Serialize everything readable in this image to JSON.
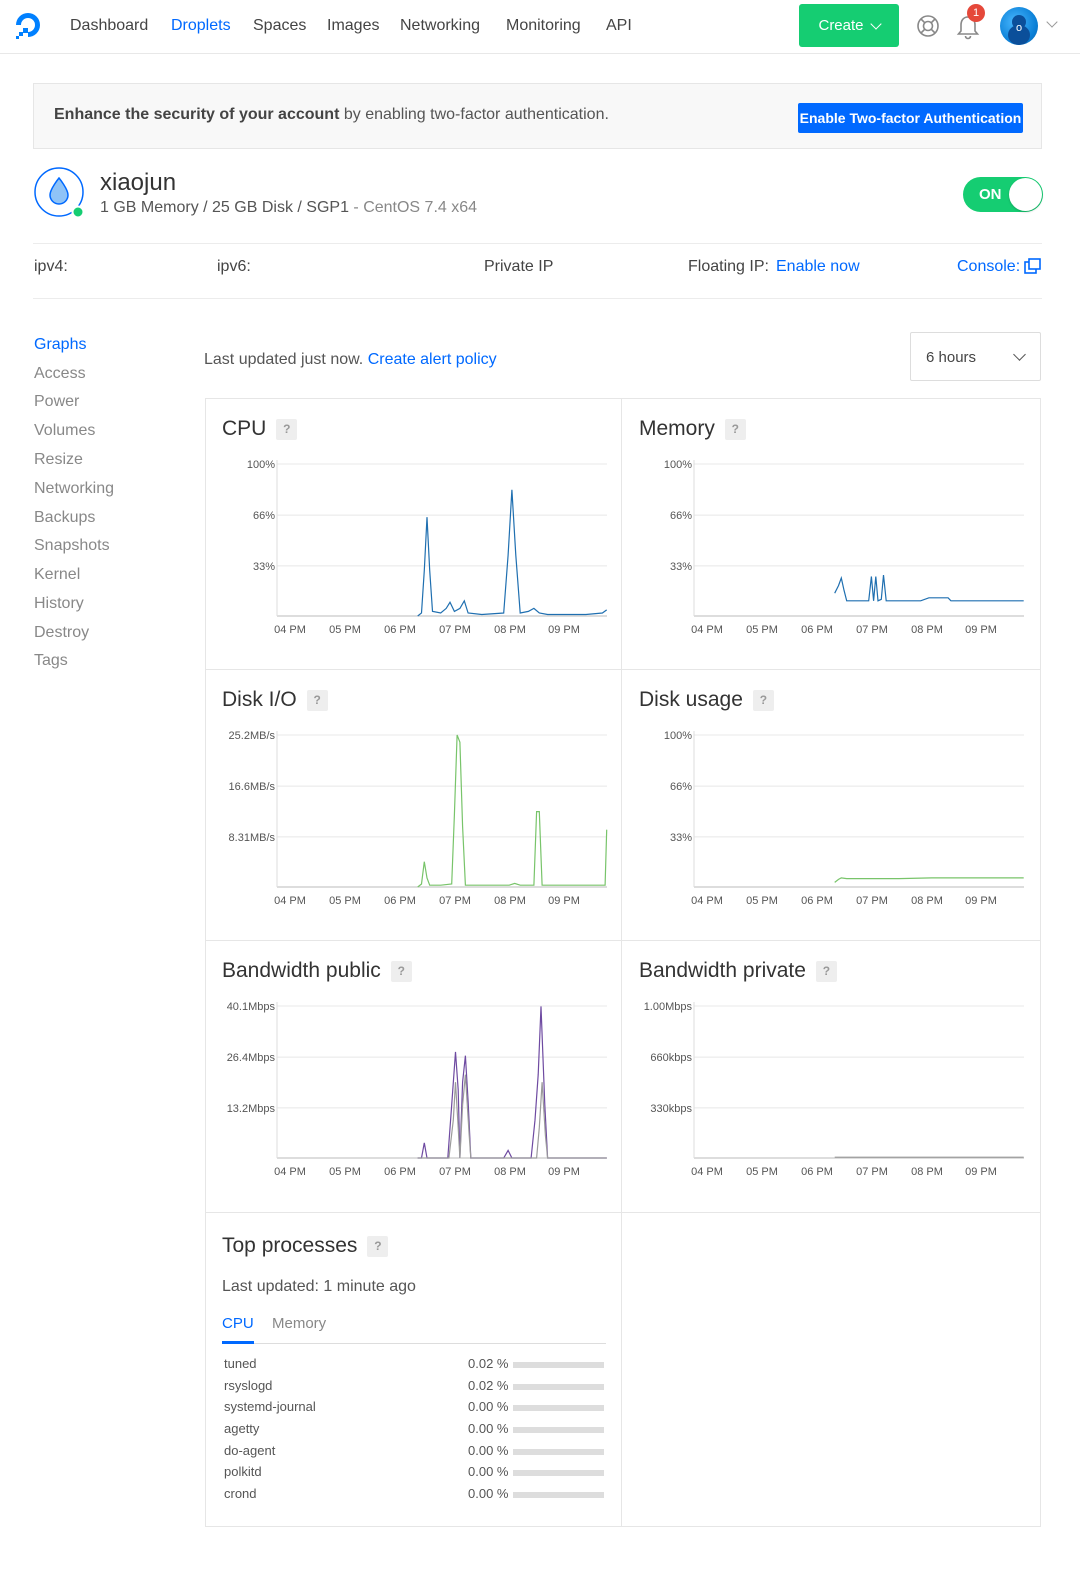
{
  "nav": {
    "items": [
      "Dashboard",
      "Droplets",
      "Spaces",
      "Images",
      "Networking",
      "Monitoring",
      "API"
    ],
    "active": "Droplets",
    "create_label": "Create",
    "notification_count": "1",
    "avatar_initial": "o"
  },
  "banner": {
    "bold_text": "Enhance the security of your account",
    "rest_text": " by enabling two-factor authentication.",
    "button_label": "Enable Two-factor Authentication"
  },
  "droplet": {
    "name": "xiaojun",
    "spec": "1 GB Memory / 25 GB Disk / SGP1",
    "os": " - CentOS 7.4 x64",
    "power_label": "ON"
  },
  "ip": {
    "ipv4_label": "ipv4:",
    "ipv6_label": "ipv6:",
    "private_label": "Private IP",
    "floating_label": "Floating IP:",
    "floating_link": "Enable now",
    "console_label": "Console:"
  },
  "sidebar": {
    "items": [
      "Graphs",
      "Access",
      "Power",
      "Volumes",
      "Resize",
      "Networking",
      "Backups",
      "Snapshots",
      "Kernel",
      "History",
      "Destroy",
      "Tags"
    ],
    "active": "Graphs"
  },
  "graphs": {
    "last_updated_text": "Last updated just now.",
    "alert_link": "Create alert policy",
    "range": "6 hours",
    "help_mark": "?"
  },
  "chart_data": [
    {
      "type": "line",
      "title": "CPU",
      "x": [
        "04 PM",
        "05 PM",
        "06 PM",
        "07 PM",
        "08 PM",
        "09 PM"
      ],
      "yticks": [
        "100%",
        "66%",
        "33%"
      ],
      "ylim": [
        0,
        100
      ],
      "series": [
        {
          "color": "#1f6fb0",
          "points": [
            [
              6.33,
              0
            ],
            [
              6.4,
              2
            ],
            [
              6.45,
              30
            ],
            [
              6.5,
              65
            ],
            [
              6.55,
              30
            ],
            [
              6.6,
              3
            ],
            [
              6.75,
              2
            ],
            [
              6.85,
              5
            ],
            [
              6.92,
              9
            ],
            [
              7.0,
              3
            ],
            [
              7.1,
              5
            ],
            [
              7.18,
              10
            ],
            [
              7.25,
              2
            ],
            [
              7.5,
              1
            ],
            [
              7.9,
              2
            ],
            [
              7.98,
              40
            ],
            [
              8.05,
              83
            ],
            [
              8.12,
              40
            ],
            [
              8.2,
              2
            ],
            [
              8.35,
              3
            ],
            [
              8.45,
              5
            ],
            [
              8.55,
              2
            ],
            [
              8.7,
              1
            ],
            [
              9.4,
              1
            ],
            [
              9.7,
              2
            ],
            [
              9.78,
              4
            ]
          ]
        }
      ]
    },
    {
      "type": "line",
      "title": "Memory",
      "x": [
        "04 PM",
        "05 PM",
        "06 PM",
        "07 PM",
        "08 PM",
        "09 PM"
      ],
      "yticks": [
        "100%",
        "66%",
        "33%"
      ],
      "ylim": [
        0,
        100
      ],
      "series": [
        {
          "color": "#1f6fb0",
          "points": [
            [
              6.33,
              15
            ],
            [
              6.4,
              20
            ],
            [
              6.45,
              25
            ],
            [
              6.5,
              17
            ],
            [
              6.55,
              10
            ],
            [
              6.7,
              10
            ],
            [
              6.95,
              10
            ],
            [
              7.0,
              26
            ],
            [
              7.04,
              10
            ],
            [
              7.08,
              26
            ],
            [
              7.12,
              10
            ],
            [
              7.18,
              11
            ],
            [
              7.22,
              27
            ],
            [
              7.27,
              10
            ],
            [
              7.4,
              10
            ],
            [
              7.9,
              10
            ],
            [
              8.05,
              12
            ],
            [
              8.4,
              12
            ],
            [
              8.45,
              10
            ],
            [
              9.2,
              10
            ],
            [
              9.78,
              10
            ]
          ]
        }
      ]
    },
    {
      "type": "line",
      "title": "Disk I/O",
      "x": [
        "04 PM",
        "05 PM",
        "06 PM",
        "07 PM",
        "08 PM",
        "09 PM"
      ],
      "yticks": [
        "25.2MB/s",
        "16.6MB/s",
        "8.31MB/s"
      ],
      "ylim": [
        0,
        25.2
      ],
      "series": [
        {
          "color": "#78c46a",
          "points": [
            [
              6.33,
              0
            ],
            [
              6.4,
              0.5
            ],
            [
              6.45,
              4.2
            ],
            [
              6.5,
              1.5
            ],
            [
              6.55,
              0.3
            ],
            [
              6.75,
              0.3
            ],
            [
              6.95,
              0.5
            ],
            [
              7.0,
              12
            ],
            [
              7.05,
              25.2
            ],
            [
              7.1,
              24
            ],
            [
              7.15,
              10
            ],
            [
              7.2,
              0.3
            ],
            [
              7.5,
              0.3
            ],
            [
              8.0,
              0.3
            ],
            [
              8.1,
              0.6
            ],
            [
              8.2,
              0.3
            ],
            [
              8.45,
              0.3
            ],
            [
              8.5,
              12.5
            ],
            [
              8.55,
              12.5
            ],
            [
              8.6,
              0.3
            ],
            [
              9.2,
              0.3
            ],
            [
              9.75,
              0.3
            ],
            [
              9.78,
              9.5
            ]
          ]
        }
      ]
    },
    {
      "type": "line",
      "title": "Disk usage",
      "x": [
        "04 PM",
        "05 PM",
        "06 PM",
        "07 PM",
        "08 PM",
        "09 PM"
      ],
      "yticks": [
        "100%",
        "66%",
        "33%"
      ],
      "ylim": [
        0,
        100
      ],
      "series": [
        {
          "color": "#78c46a",
          "points": [
            [
              6.33,
              3
            ],
            [
              6.4,
              5
            ],
            [
              6.45,
              6
            ],
            [
              6.55,
              5.5
            ],
            [
              7.5,
              5.5
            ],
            [
              8.1,
              6
            ],
            [
              9.78,
              6
            ]
          ]
        }
      ]
    },
    {
      "type": "line",
      "title": "Bandwidth public",
      "x": [
        "04 PM",
        "05 PM",
        "06 PM",
        "07 PM",
        "08 PM",
        "09 PM"
      ],
      "yticks": [
        "40.1Mbps",
        "26.4Mbps",
        "13.2Mbps"
      ],
      "ylim": [
        0,
        40.1
      ],
      "series": [
        {
          "color": "#6e4aa1",
          "points": [
            [
              6.33,
              0
            ],
            [
              6.4,
              0
            ],
            [
              6.45,
              4
            ],
            [
              6.5,
              0
            ],
            [
              6.88,
              0
            ],
            [
              6.95,
              14
            ],
            [
              7.02,
              28
            ],
            [
              7.07,
              18
            ],
            [
              7.1,
              0
            ],
            [
              7.15,
              20
            ],
            [
              7.2,
              27
            ],
            [
              7.25,
              15
            ],
            [
              7.3,
              0
            ],
            [
              7.9,
              0
            ],
            [
              7.98,
              2
            ],
            [
              8.05,
              0
            ],
            [
              8.4,
              0
            ],
            [
              8.47,
              10
            ],
            [
              8.53,
              22
            ],
            [
              8.58,
              40
            ],
            [
              8.65,
              14
            ],
            [
              8.7,
              0
            ],
            [
              9.78,
              0
            ]
          ]
        },
        {
          "color": "#9b9b9b",
          "points": [
            [
              6.33,
              0
            ],
            [
              6.9,
              0
            ],
            [
              6.98,
              10
            ],
            [
              7.02,
              20
            ],
            [
              7.07,
              8
            ],
            [
              7.1,
              0
            ],
            [
              7.15,
              14
            ],
            [
              7.2,
              22
            ],
            [
              7.27,
              6
            ],
            [
              7.3,
              0
            ],
            [
              8.5,
              0
            ],
            [
              8.55,
              8
            ],
            [
              8.6,
              20
            ],
            [
              8.66,
              6
            ],
            [
              8.7,
              0
            ],
            [
              9.78,
              0
            ]
          ]
        }
      ]
    },
    {
      "type": "line",
      "title": "Bandwidth private",
      "x": [
        "04 PM",
        "05 PM",
        "06 PM",
        "07 PM",
        "08 PM",
        "09 PM"
      ],
      "yticks": [
        "1.00Mbps",
        "660kbps",
        "330kbps"
      ],
      "ylim": [
        0,
        1.0
      ],
      "series": [
        {
          "color": "#9b9b9b",
          "points": [
            [
              6.33,
              0.005
            ],
            [
              9.78,
              0.005
            ]
          ]
        }
      ]
    }
  ],
  "top_processes": {
    "title": "Top processes",
    "last_updated": "Last updated: 1 minute ago",
    "tabs": [
      "CPU",
      "Memory"
    ],
    "rows": [
      {
        "name": "tuned",
        "value": "0.02 %",
        "fraction": 0.0
      },
      {
        "name": "rsyslogd",
        "value": "0.02 %",
        "fraction": 0.0
      },
      {
        "name": "systemd-journal",
        "value": "0.00 %",
        "fraction": 0.0
      },
      {
        "name": "agetty",
        "value": "0.00 %",
        "fraction": 0.0
      },
      {
        "name": "do-agent",
        "value": "0.00 %",
        "fraction": 0.0
      },
      {
        "name": "polkitd",
        "value": "0.00 %",
        "fraction": 0.0
      },
      {
        "name": "crond",
        "value": "0.00 %",
        "fraction": 0.0
      }
    ]
  },
  "colors": {
    "accent": "#0069ff",
    "create_green": "#15cd72",
    "badge_red": "#e5483a"
  }
}
